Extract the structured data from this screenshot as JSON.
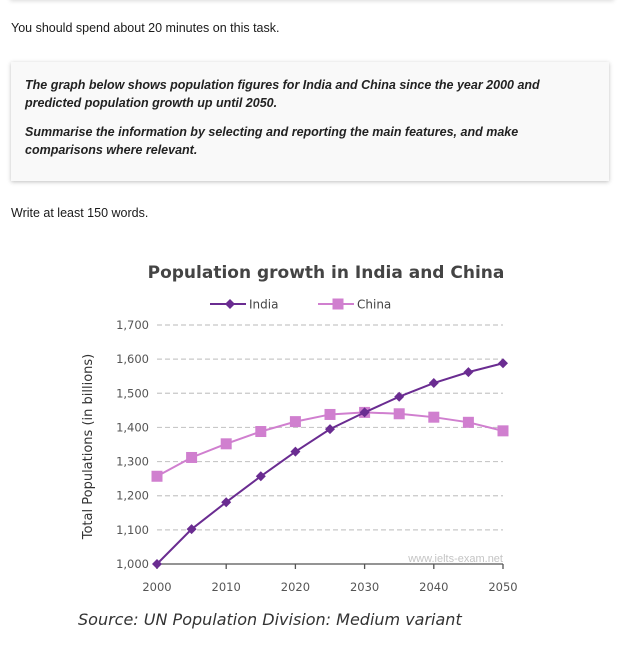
{
  "intro_text": "You should spend about 20 minutes on this task.",
  "task": {
    "paragraphs": [
      "The graph below shows population figures for India and China since the year 2000 and predicted population growth up until 2050.",
      "Summarise the information by selecting and reporting the main features, and make comparisons where relevant."
    ]
  },
  "word_requirement": "Write at least 150 words.",
  "chart_data": {
    "type": "line",
    "title": "Population growth in India and China",
    "xlabel": "",
    "ylabel": "Total Populations (in billions)",
    "x": [
      2000,
      2005,
      2010,
      2015,
      2020,
      2025,
      2030,
      2035,
      2040,
      2045,
      2050
    ],
    "xticks": [
      "2000",
      "2010",
      "2020",
      "2030",
      "2040",
      "2050"
    ],
    "xtick_values": [
      2000,
      2010,
      2020,
      2030,
      2040,
      2050
    ],
    "yticks": [
      "1,000",
      "1,100",
      "1,200",
      "1,300",
      "1,400",
      "1,500",
      "1,600",
      "1,700"
    ],
    "ytick_values": [
      1000,
      1100,
      1200,
      1300,
      1400,
      1500,
      1600,
      1700
    ],
    "ylim": [
      1000,
      1700
    ],
    "xlim": [
      2000,
      2050
    ],
    "grid": "horizontal-dashed",
    "legend_position": "top-center",
    "series": [
      {
        "name": "India",
        "marker": "diamond",
        "color": "#6a2c91",
        "values": [
          1000,
          1102,
          1181,
          1257,
          1329,
          1395,
          1444,
          1490,
          1530,
          1562,
          1588
        ]
      },
      {
        "name": "China",
        "marker": "square",
        "color": "#d07fcf",
        "values": [
          1257,
          1312,
          1352,
          1388,
          1417,
          1438,
          1444,
          1440,
          1430,
          1415,
          1390
        ]
      }
    ],
    "watermark": "www.ielts-exam.net",
    "source": "Source: UN Population Division: Medium variant"
  }
}
